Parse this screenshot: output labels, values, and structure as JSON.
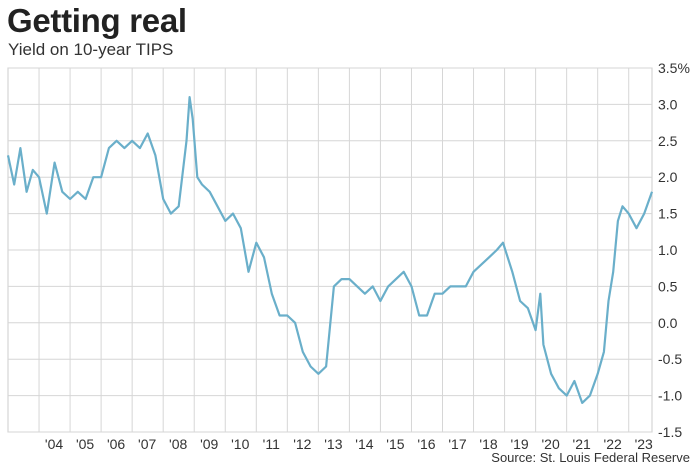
{
  "chart_data": {
    "type": "line",
    "title": "Getting real",
    "subtitle": "Yield on 10-year TIPS",
    "source": "Source: St. Louis Federal Reserve",
    "y_unit": "%",
    "ylim": [
      -1.5,
      3.5
    ],
    "xlim": [
      2003.0,
      2023.75
    ],
    "grid": true,
    "y_ticks": [
      -1.5,
      -1.0,
      -0.5,
      0.0,
      0.5,
      1.0,
      1.5,
      2.0,
      2.5,
      3.0,
      3.5
    ],
    "y_tick_labels": [
      "-1.5",
      "-1.0",
      "-0.5",
      "0.0",
      "0.5",
      "1.0",
      "1.5",
      "2.0",
      "2.5",
      "3.0",
      "3.5%"
    ],
    "x_ticks": [
      2004,
      2005,
      2006,
      2007,
      2008,
      2009,
      2010,
      2011,
      2012,
      2013,
      2014,
      2015,
      2016,
      2017,
      2018,
      2019,
      2020,
      2021,
      2022,
      2023
    ],
    "x_tick_labels": [
      "'04",
      "'05",
      "'06",
      "'07",
      "'08",
      "'09",
      "'10",
      "'11",
      "'12",
      "'13",
      "'14",
      "'15",
      "'16",
      "'17",
      "'18",
      "'19",
      "'20",
      "'21",
      "'22",
      "'23"
    ],
    "line_color": "#6aafca",
    "series": [
      {
        "x": [
          2003.0,
          2003.2,
          2003.4,
          2003.6,
          2003.8,
          2004.0,
          2004.25,
          2004.5,
          2004.75,
          2005.0,
          2005.25,
          2005.5,
          2005.75,
          2006.0,
          2006.25,
          2006.5,
          2006.75,
          2007.0,
          2007.25,
          2007.5,
          2007.75,
          2008.0,
          2008.25,
          2008.5,
          2008.75,
          2008.85,
          2008.95,
          2009.1,
          2009.25,
          2009.5,
          2009.75,
          2010.0,
          2010.25,
          2010.5,
          2010.75,
          2011.0,
          2011.25,
          2011.5,
          2011.75,
          2012.0,
          2012.25,
          2012.5,
          2012.75,
          2013.0,
          2013.25,
          2013.5,
          2013.75,
          2014.0,
          2014.25,
          2014.5,
          2014.75,
          2015.0,
          2015.25,
          2015.5,
          2015.75,
          2016.0,
          2016.25,
          2016.5,
          2016.75,
          2017.0,
          2017.25,
          2017.5,
          2017.75,
          2018.0,
          2018.25,
          2018.5,
          2018.75,
          2018.95,
          2019.25,
          2019.5,
          2019.75,
          2020.0,
          2020.15,
          2020.25,
          2020.5,
          2020.75,
          2021.0,
          2021.25,
          2021.5,
          2021.75,
          2022.0,
          2022.2,
          2022.35,
          2022.5,
          2022.65,
          2022.8,
          2023.0,
          2023.25,
          2023.5,
          2023.75
        ],
        "values": [
          2.3,
          1.9,
          2.4,
          1.8,
          2.1,
          2.0,
          1.5,
          2.2,
          1.8,
          1.7,
          1.8,
          1.7,
          2.0,
          2.0,
          2.4,
          2.5,
          2.4,
          2.5,
          2.4,
          2.6,
          2.3,
          1.7,
          1.5,
          1.6,
          2.5,
          3.1,
          2.8,
          2.0,
          1.9,
          1.8,
          1.6,
          1.4,
          1.5,
          1.3,
          0.7,
          1.1,
          0.9,
          0.4,
          0.1,
          0.1,
          0.0,
          -0.4,
          -0.6,
          -0.7,
          -0.6,
          0.5,
          0.6,
          0.6,
          0.5,
          0.4,
          0.5,
          0.3,
          0.5,
          0.6,
          0.7,
          0.5,
          0.1,
          0.1,
          0.4,
          0.4,
          0.5,
          0.5,
          0.5,
          0.7,
          0.8,
          0.9,
          1.0,
          1.1,
          0.7,
          0.3,
          0.2,
          -0.1,
          0.4,
          -0.3,
          -0.7,
          -0.9,
          -1.0,
          -0.8,
          -1.1,
          -1.0,
          -0.7,
          -0.4,
          0.3,
          0.7,
          1.4,
          1.6,
          1.5,
          1.3,
          1.5,
          1.8
        ]
      }
    ]
  }
}
